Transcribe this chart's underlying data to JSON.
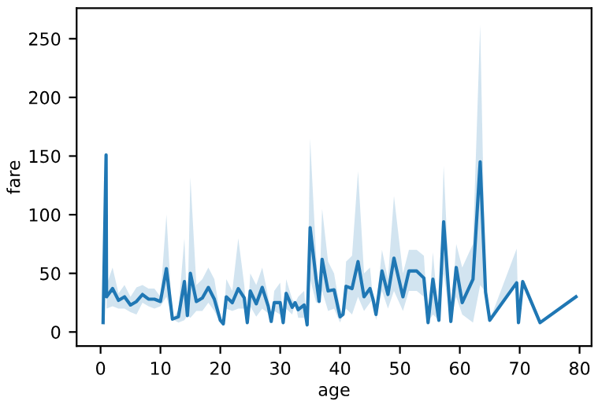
{
  "chart_data": {
    "type": "line",
    "xlabel": "age",
    "ylabel": "fare",
    "xlim": [
      -4,
      82
    ],
    "ylim": [
      -12,
      276
    ],
    "xticks": [
      0,
      10,
      20,
      30,
      40,
      50,
      60,
      70,
      80
    ],
    "yticks": [
      0,
      50,
      100,
      150,
      200,
      250
    ],
    "grid": false,
    "legend": false,
    "marker": "none",
    "line_style": "solid",
    "series": [
      {
        "color": "#1f77b4",
        "x": [
          0.42,
          0.92,
          1,
          2,
          3,
          4,
          5,
          6,
          7,
          8,
          9,
          10,
          11,
          12,
          13,
          14,
          14.5,
          15,
          16,
          17,
          18,
          19,
          20,
          20.5,
          21,
          22,
          23,
          24,
          24.5,
          25,
          26,
          27,
          28,
          28.5,
          29,
          30,
          30.5,
          31,
          32,
          32.5,
          33,
          34,
          34.5,
          35,
          36,
          36.5,
          37,
          38,
          39,
          40,
          40.5,
          41,
          42,
          43,
          44,
          45,
          45.5,
          46,
          47,
          48,
          49,
          50.5,
          51.5,
          52.8,
          54,
          54.7,
          55.5,
          56.5,
          57.3,
          58.5,
          59.4,
          60.4,
          62.2,
          63.4,
          64.3,
          65,
          69.5,
          69.8,
          70.5,
          73.4,
          79.4
        ],
        "values": [
          8,
          151,
          30,
          37,
          27,
          30,
          23,
          26,
          32,
          28,
          28,
          26,
          54,
          11,
          13,
          43,
          14,
          50,
          26,
          29,
          38,
          28,
          10,
          7,
          30,
          25,
          37,
          29,
          8,
          35,
          24,
          38,
          22,
          9,
          25,
          25,
          8,
          33,
          21,
          25,
          19,
          23,
          6,
          89,
          45,
          26,
          62,
          35,
          36,
          13,
          15,
          39,
          37,
          60,
          30,
          37,
          28,
          15,
          52,
          32,
          63,
          30,
          52,
          52,
          46,
          8,
          45,
          10,
          94,
          9,
          55,
          25,
          45,
          145,
          34,
          10,
          42,
          8,
          43,
          8,
          30
        ],
        "lower": [
          8,
          151,
          20,
          22,
          20,
          20,
          17,
          15,
          25,
          22,
          20,
          22,
          30,
          11,
          8,
          10,
          14,
          12,
          18,
          18,
          25,
          18,
          8,
          7,
          20,
          18,
          20,
          20,
          8,
          22,
          13,
          20,
          16,
          9,
          18,
          15,
          8,
          20,
          15,
          25,
          12,
          12,
          6,
          45,
          25,
          26,
          35,
          18,
          20,
          8,
          15,
          20,
          15,
          30,
          18,
          25,
          28,
          10,
          35,
          20,
          35,
          18,
          35,
          35,
          30,
          8,
          15,
          10,
          50,
          9,
          30,
          15,
          8,
          40,
          34,
          10,
          40,
          8,
          43,
          8,
          30
        ],
        "upper": [
          8,
          151,
          40,
          55,
          33,
          40,
          30,
          38,
          40,
          37,
          37,
          30,
          100,
          11,
          19,
          80,
          14,
          132,
          40,
          45,
          55,
          45,
          14,
          7,
          45,
          35,
          80,
          40,
          8,
          50,
          40,
          55,
          30,
          9,
          35,
          42,
          8,
          45,
          28,
          25,
          30,
          35,
          6,
          165,
          65,
          26,
          105,
          60,
          50,
          20,
          15,
          60,
          65,
          137,
          50,
          55,
          28,
          20,
          70,
          45,
          116,
          50,
          70,
          70,
          65,
          8,
          68,
          10,
          142,
          9,
          75,
          55,
          75,
          262,
          34,
          10,
          71,
          8,
          43,
          8,
          30
        ]
      }
    ]
  }
}
